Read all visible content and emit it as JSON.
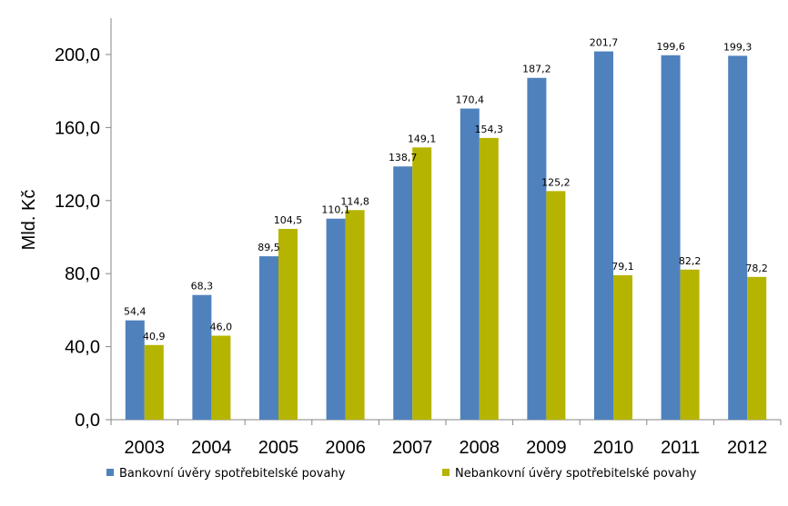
{
  "chart_data": {
    "type": "bar",
    "ylabel": "Mld. Kč",
    "xlabel": "",
    "title": "",
    "ylim": [
      0,
      200
    ],
    "yticks": [
      "0,0",
      "40,0",
      "80,0",
      "120,0",
      "160,0",
      "200,0"
    ],
    "categories": [
      "2003",
      "2004",
      "2005",
      "2006",
      "2007",
      "2008",
      "2009",
      "2010",
      "2011",
      "2012"
    ],
    "series": [
      {
        "name": "Bankovní úvěry spotřebitelské povahy",
        "color": "#4F81BD",
        "values": [
          54.4,
          68.3,
          89.5,
          110.1,
          138.7,
          170.4,
          187.2,
          201.7,
          199.6,
          199.3
        ],
        "labels": [
          "54,4",
          "68,3",
          "89,5",
          "110,1",
          "138,7",
          "170,4",
          "187,2",
          "201,7",
          "199,6",
          "199,3"
        ]
      },
      {
        "name": "Nebankovní úvěry spotřebitelské povahy",
        "color": "#B5B400",
        "values": [
          40.9,
          46.0,
          104.5,
          114.8,
          149.1,
          154.3,
          125.2,
          79.1,
          82.2,
          78.2
        ],
        "labels": [
          "40,9",
          "46,0",
          "104,5",
          "114,8",
          "149,1",
          "154,3",
          "125,2",
          "79,1",
          "82,2",
          "78,2"
        ]
      }
    ],
    "grid": false,
    "legend_position": "bottom"
  }
}
